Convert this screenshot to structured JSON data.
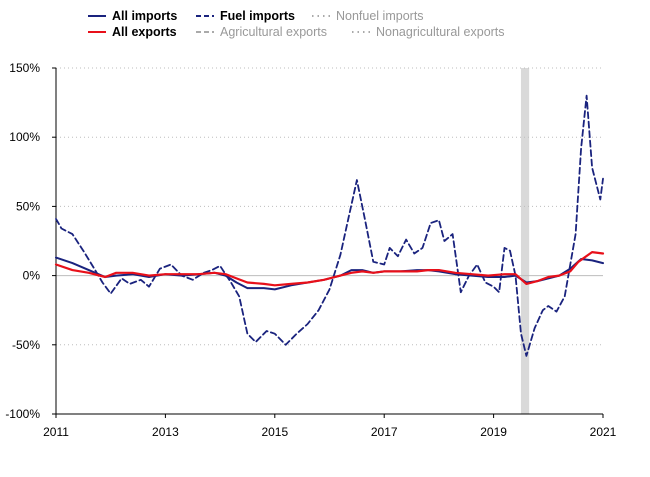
{
  "chart_data": {
    "type": "line",
    "title": "",
    "xlabel": "",
    "ylabel": "",
    "ylim": [
      -100,
      150
    ],
    "xlim": [
      2011,
      2021
    ],
    "yticks": [
      -100,
      -50,
      0,
      50,
      100,
      150
    ],
    "ytick_labels": [
      "-100%",
      "-50%",
      "0%",
      "50%",
      "100%",
      "150%"
    ],
    "xticks": [
      2011,
      2013,
      2015,
      2017,
      2019,
      2021
    ],
    "xtick_labels": [
      "2011",
      "2013",
      "2015",
      "2017",
      "2019",
      "2021"
    ],
    "grid": "horizontal-dotted",
    "shaded_region": [
      2019.5,
      2019.65
    ],
    "legend": [
      {
        "name": "All imports",
        "color": "#1a237e",
        "style": "solid",
        "shown_in_plot": true
      },
      {
        "name": "Fuel imports",
        "color": "#1a237e",
        "style": "dashed",
        "shown_in_plot": true
      },
      {
        "name": "Nonfuel imports",
        "color": "#9e9e9e",
        "style": "dotted",
        "shown_in_plot": false
      },
      {
        "name": "All exports",
        "color": "#e8101a",
        "style": "solid",
        "shown_in_plot": true
      },
      {
        "name": "Agricultural exports",
        "color": "#9e9e9e",
        "style": "dashed",
        "shown_in_plot": false
      },
      {
        "name": "Nonagricultural exports",
        "color": "#9e9e9e",
        "style": "dotted",
        "shown_in_plot": false
      }
    ],
    "series": [
      {
        "name": "All imports",
        "x": [
          2011.0,
          2011.3,
          2011.6,
          2011.9,
          2012.1,
          2012.4,
          2012.7,
          2013.0,
          2013.3,
          2013.6,
          2013.9,
          2014.1,
          2014.3,
          2014.5,
          2014.8,
          2015.0,
          2015.3,
          2015.6,
          2015.9,
          2016.2,
          2016.4,
          2016.6,
          2016.8,
          2017.0,
          2017.3,
          2017.6,
          2017.8,
          2018.0,
          2018.3,
          2018.6,
          2018.9,
          2019.2,
          2019.4,
          2019.6,
          2019.8,
          2020.0,
          2020.2,
          2020.4,
          2020.6,
          2020.8,
          2021.0
        ],
        "values": [
          13,
          9,
          4,
          -1,
          0,
          1,
          -1,
          1,
          0,
          1,
          2,
          0,
          -5,
          -9,
          -9,
          -10,
          -7,
          -5,
          -3,
          0,
          4,
          4,
          2,
          3,
          3,
          4,
          4,
          3,
          1,
          0,
          -1,
          -1,
          0,
          -5,
          -4,
          -2,
          0,
          5,
          12,
          11,
          9
        ]
      },
      {
        "name": "Fuel imports",
        "x": [
          2011.0,
          2011.1,
          2011.3,
          2011.5,
          2011.7,
          2011.85,
          2012.0,
          2012.2,
          2012.35,
          2012.55,
          2012.7,
          2012.9,
          2013.1,
          2013.3,
          2013.5,
          2013.7,
          2013.85,
          2014.0,
          2014.2,
          2014.35,
          2014.5,
          2014.65,
          2014.85,
          2015.0,
          2015.2,
          2015.4,
          2015.6,
          2015.8,
          2016.0,
          2016.2,
          2016.35,
          2016.5,
          2016.65,
          2016.8,
          2017.0,
          2017.1,
          2017.25,
          2017.4,
          2017.55,
          2017.7,
          2017.85,
          2018.0,
          2018.1,
          2018.25,
          2018.4,
          2018.55,
          2018.7,
          2018.85,
          2019.0,
          2019.1,
          2019.2,
          2019.3,
          2019.4,
          2019.5,
          2019.6,
          2019.75,
          2019.9,
          2020.0,
          2020.15,
          2020.3,
          2020.5,
          2020.6,
          2020.7,
          2020.8,
          2020.95,
          2021.0
        ],
        "values": [
          41,
          34,
          30,
          18,
          5,
          -5,
          -13,
          -2,
          -6,
          -3,
          -8,
          5,
          8,
          0,
          -3,
          2,
          4,
          7,
          -5,
          -15,
          -42,
          -48,
          -40,
          -42,
          -50,
          -42,
          -35,
          -25,
          -10,
          15,
          42,
          69,
          40,
          10,
          8,
          20,
          14,
          26,
          16,
          20,
          38,
          40,
          25,
          30,
          -12,
          0,
          8,
          -5,
          -8,
          -12,
          20,
          18,
          0,
          -42,
          -58,
          -38,
          -25,
          -22,
          -26,
          -15,
          30,
          92,
          130,
          78,
          55,
          70
        ]
      },
      {
        "name": "All exports",
        "x": [
          2011.0,
          2011.3,
          2011.6,
          2011.9,
          2012.1,
          2012.4,
          2012.7,
          2013.0,
          2013.3,
          2013.6,
          2013.9,
          2014.1,
          2014.3,
          2014.5,
          2014.8,
          2015.0,
          2015.3,
          2015.6,
          2015.9,
          2016.2,
          2016.4,
          2016.6,
          2016.8,
          2017.0,
          2017.3,
          2017.6,
          2017.8,
          2018.0,
          2018.3,
          2018.6,
          2018.9,
          2019.2,
          2019.4,
          2019.6,
          2019.8,
          2020.0,
          2020.2,
          2020.4,
          2020.55,
          2020.8,
          2021.0
        ],
        "values": [
          8,
          4,
          2,
          -1,
          2,
          2,
          0,
          1,
          1,
          1,
          2,
          1,
          -2,
          -5,
          -6,
          -7,
          -6,
          -5,
          -3,
          0,
          2,
          3,
          2,
          3,
          3,
          3,
          4,
          4,
          2,
          1,
          0,
          1,
          1,
          -6,
          -4,
          -1,
          0,
          3,
          10,
          17,
          16
        ]
      }
    ]
  }
}
